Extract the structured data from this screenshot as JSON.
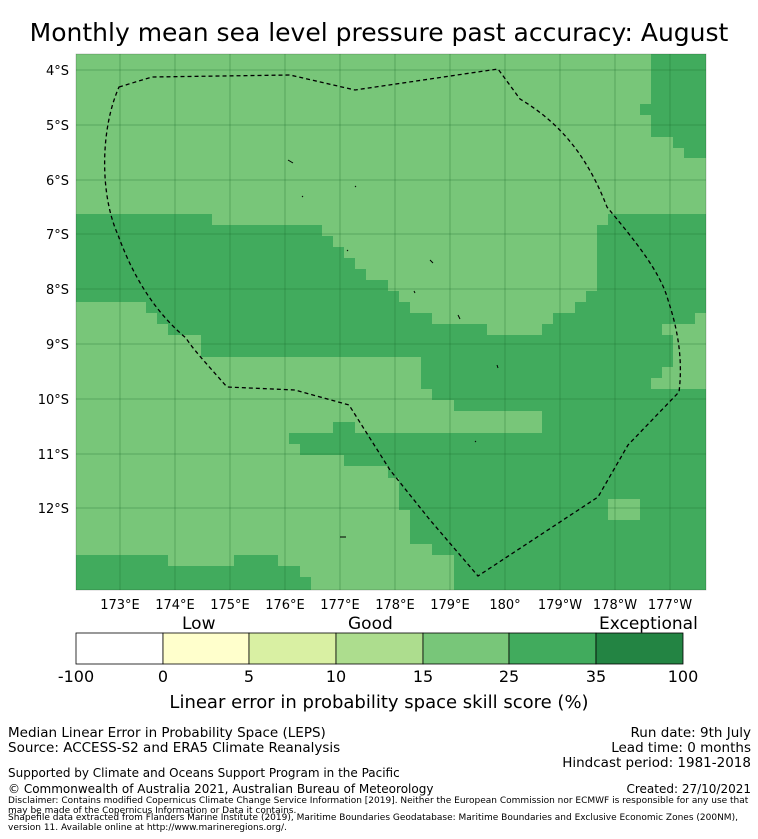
{
  "title": "Monthly mean sea level pressure past accuracy: August",
  "map": {
    "lat_labels": [
      "4°S",
      "5°S",
      "6°S",
      "7°S",
      "8°S",
      "9°S",
      "10°S",
      "11°S",
      "12°S"
    ],
    "lon_labels": [
      "173°E",
      "174°E",
      "175°E",
      "176°E",
      "177°E",
      "178°E",
      "179°E",
      "180°",
      "179°W",
      "178°W",
      "177°W"
    ],
    "boundary_style": "dashed",
    "colors": {
      "class_15_25": "#78c679",
      "class_25_35": "#41ab5d",
      "boundary": "#000000"
    }
  },
  "colorbar": {
    "categories": [
      "Low",
      "Good",
      "Exceptional"
    ],
    "ticks": [
      "-100",
      "0",
      "5",
      "10",
      "15",
      "25",
      "35",
      "100"
    ],
    "colors": [
      "#ffffff",
      "#ffffcc",
      "#d9f0a3",
      "#addd8e",
      "#78c679",
      "#41ab5d",
      "#238443"
    ],
    "label": "Linear error in probability space skill score (%)"
  },
  "footer": {
    "method": "Median Linear Error in Probability Space (LEPS)",
    "source": "Source: ACCESS-S2 and ERA5 Climate Reanalysis",
    "run_date": "Run date: 9th July",
    "lead_time": "Lead time: 0 months",
    "hindcast": "Hindcast period: 1981-2018",
    "support": "Supported by Climate and Oceans Support Program in the Pacific",
    "copyright": "© Commonwealth of Australia 2021, Australian Bureau of Meteorology",
    "created": "Created: 27/10/2021",
    "disclaimer": "Disclaimer: Contains modified Copernicus Climate Change Service Information [2019]. Neither the European Commission nor ECMWF is responsible for any use that may be made of the Copernicus Information or Data it contains.",
    "shapefile": "Shapefile data extracted from Flanders Marine Institute (2019), Maritime Boundaries Geodatabase: Maritime Boundaries and Exclusive Economic Zones (200NM), version 11. Available online at http://www.marineregions.org/."
  }
}
